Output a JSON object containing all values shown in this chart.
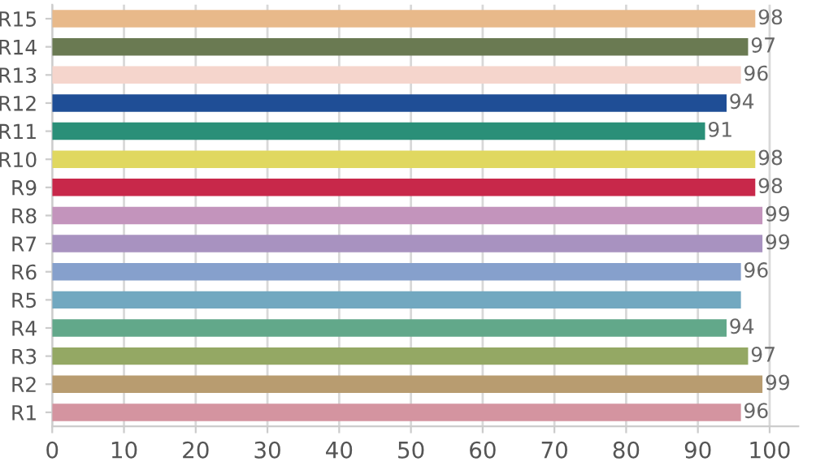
{
  "chart_data": {
    "type": "bar",
    "orientation": "horizontal",
    "categories": [
      "R15",
      "R14",
      "R13",
      "R12",
      "R11",
      "R10",
      "R9",
      "R8",
      "R7",
      "R6",
      "R5",
      "R4",
      "R3",
      "R2",
      "R1"
    ],
    "values": [
      98,
      97,
      96,
      94,
      91,
      98,
      98,
      99,
      99,
      96,
      96,
      94,
      97,
      99,
      96
    ],
    "value_labels": [
      "98",
      "97",
      "96",
      "94",
      "91",
      "98",
      "98",
      "99",
      "99",
      "96",
      null,
      "94",
      "97",
      "99",
      "96"
    ],
    "colors": [
      "#e8b98a",
      "#6a7a52",
      "#f5d5cc",
      "#1f4e96",
      "#2a8f78",
      "#e0d860",
      "#c8284a",
      "#c394bc",
      "#a892c0",
      "#86a0cc",
      "#72a8c0",
      "#62a88a",
      "#94a864",
      "#b89c70",
      "#d494a0"
    ],
    "xlim": [
      0,
      104
    ],
    "xticks": [
      0,
      10,
      20,
      30,
      40,
      50,
      60,
      70,
      80,
      90,
      100
    ],
    "grid": "x"
  }
}
